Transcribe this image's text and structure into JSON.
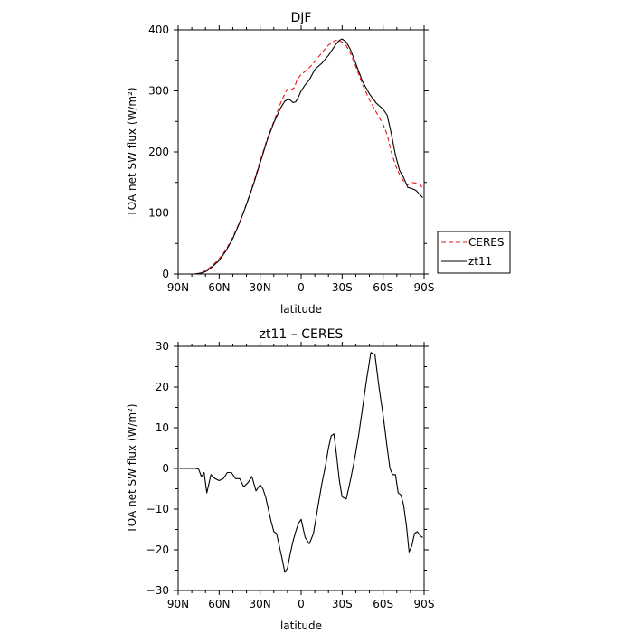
{
  "chart_data": [
    {
      "type": "line",
      "title": "DJF",
      "xlabel": "latitude",
      "ylabel": "TOA net SW flux (W/m²)",
      "xlim": [
        90,
        -90
      ],
      "ylim": [
        0,
        400
      ],
      "x_ticks": [
        90,
        60,
        30,
        0,
        -30,
        -60,
        -90
      ],
      "x_tick_labels": [
        "90N",
        "60N",
        "30N",
        "0",
        "30S",
        "60S",
        "90S"
      ],
      "y_ticks": [
        0,
        100,
        200,
        300,
        400
      ],
      "y_tick_labels": [
        "0",
        "100",
        "200",
        "300",
        "400"
      ],
      "legend": {
        "placement": "right-outside",
        "entries": [
          "CERES",
          "zt11"
        ]
      },
      "series": [
        {
          "name": "CERES",
          "color": "#e8141a",
          "dash": "dashed",
          "x": [
            78,
            75,
            72,
            69,
            66,
            63,
            60,
            55,
            50,
            45,
            40,
            35,
            30,
            25,
            20,
            15,
            12,
            10,
            8,
            5,
            3,
            0,
            -3,
            -6,
            -10,
            -15,
            -20,
            -25,
            -28,
            -30,
            -33,
            -36,
            -40,
            -45,
            -50,
            -55,
            -60,
            -63,
            -66,
            -69,
            -72,
            -75,
            -78,
            -81,
            -84,
            -87,
            -89
          ],
          "y": [
            0,
            1,
            3,
            7,
            12,
            18,
            25,
            40,
            60,
            85,
            115,
            148,
            185,
            220,
            250,
            280,
            295,
            303,
            301,
            305,
            318,
            327,
            332,
            338,
            348,
            362,
            375,
            383,
            382,
            380,
            374,
            362,
            340,
            310,
            285,
            265,
            245,
            228,
            200,
            178,
            163,
            152,
            146,
            150,
            149,
            147,
            140
          ]
        },
        {
          "name": "zt11",
          "color": "#000000",
          "dash": "solid",
          "x": [
            78,
            75,
            72,
            69,
            66,
            63,
            60,
            55,
            50,
            45,
            40,
            35,
            30,
            25,
            20,
            15,
            12,
            10,
            8,
            6,
            4,
            2,
            0,
            -3,
            -6,
            -10,
            -15,
            -20,
            -25,
            -28,
            -30,
            -33,
            -36,
            -40,
            -45,
            -50,
            -55,
            -60,
            -63,
            -66,
            -69,
            -72,
            -75,
            -78,
            -81,
            -84,
            -87,
            -89
          ],
          "y": [
            0,
            1,
            2,
            5,
            10,
            16,
            22,
            38,
            58,
            84,
            114,
            146,
            182,
            218,
            248,
            272,
            283,
            286,
            285,
            281,
            282,
            290,
            300,
            310,
            318,
            335,
            345,
            358,
            375,
            383,
            385,
            380,
            368,
            345,
            315,
            295,
            280,
            270,
            260,
            230,
            195,
            170,
            158,
            142,
            140,
            137,
            130,
            125
          ]
        }
      ]
    },
    {
      "type": "line",
      "title": "zt11 – CERES",
      "xlabel": "latitude",
      "ylabel": "TOA net SW flux (W/m²)",
      "xlim": [
        90,
        -90
      ],
      "ylim": [
        -30,
        30
      ],
      "x_ticks": [
        90,
        60,
        30,
        0,
        -30,
        -60,
        -90
      ],
      "x_tick_labels": [
        "90N",
        "60N",
        "30N",
        "0",
        "30S",
        "60S",
        "90S"
      ],
      "y_ticks": [
        -30,
        -20,
        -10,
        0,
        10,
        20,
        30
      ],
      "y_tick_labels": [
        "−30",
        "−20",
        "−10",
        "0",
        "10",
        "20",
        "30"
      ],
      "series": [
        {
          "color": "#000000",
          "dash": "solid",
          "x": [
            89,
            85,
            80,
            77,
            75,
            73,
            71,
            69,
            66,
            63,
            60,
            57,
            54,
            51,
            48,
            45,
            42,
            39,
            36,
            33,
            30,
            28,
            26,
            24,
            22,
            20,
            18,
            16,
            14,
            12,
            10,
            8,
            6,
            4,
            2,
            0,
            -3,
            -6,
            -9,
            -12,
            -15,
            -18,
            -20,
            -22,
            -24,
            -26,
            -28,
            -30,
            -33,
            -36,
            -39,
            -42,
            -45,
            -48,
            -51,
            -54,
            -57,
            -60,
            -63,
            -65,
            -67,
            -69,
            -71,
            -73,
            -75,
            -77,
            -79,
            -81,
            -83,
            -85,
            -87,
            -89
          ],
          "y": [
            0,
            0,
            0,
            0,
            -0.2,
            -2,
            -1,
            -6,
            -1.5,
            -2.5,
            -3,
            -2.5,
            -1,
            -1,
            -2.5,
            -2.5,
            -4.5,
            -3.5,
            -2,
            -5.5,
            -4,
            -5,
            -7,
            -10,
            -13,
            -15.5,
            -16,
            -19,
            -22,
            -25.5,
            -24.5,
            -21,
            -18,
            -15.5,
            -13.5,
            -12.5,
            -17,
            -18.5,
            -16,
            -10,
            -4,
            1,
            5,
            8,
            8.5,
            3,
            -3,
            -7,
            -7.5,
            -3,
            2,
            8,
            15,
            22,
            28.5,
            28,
            20,
            13,
            5,
            0,
            -1.5,
            -1.5,
            -6,
            -6.5,
            -9,
            -14,
            -20.5,
            -19,
            -16,
            -15.5,
            -16.5,
            -17
          ]
        }
      ]
    }
  ]
}
